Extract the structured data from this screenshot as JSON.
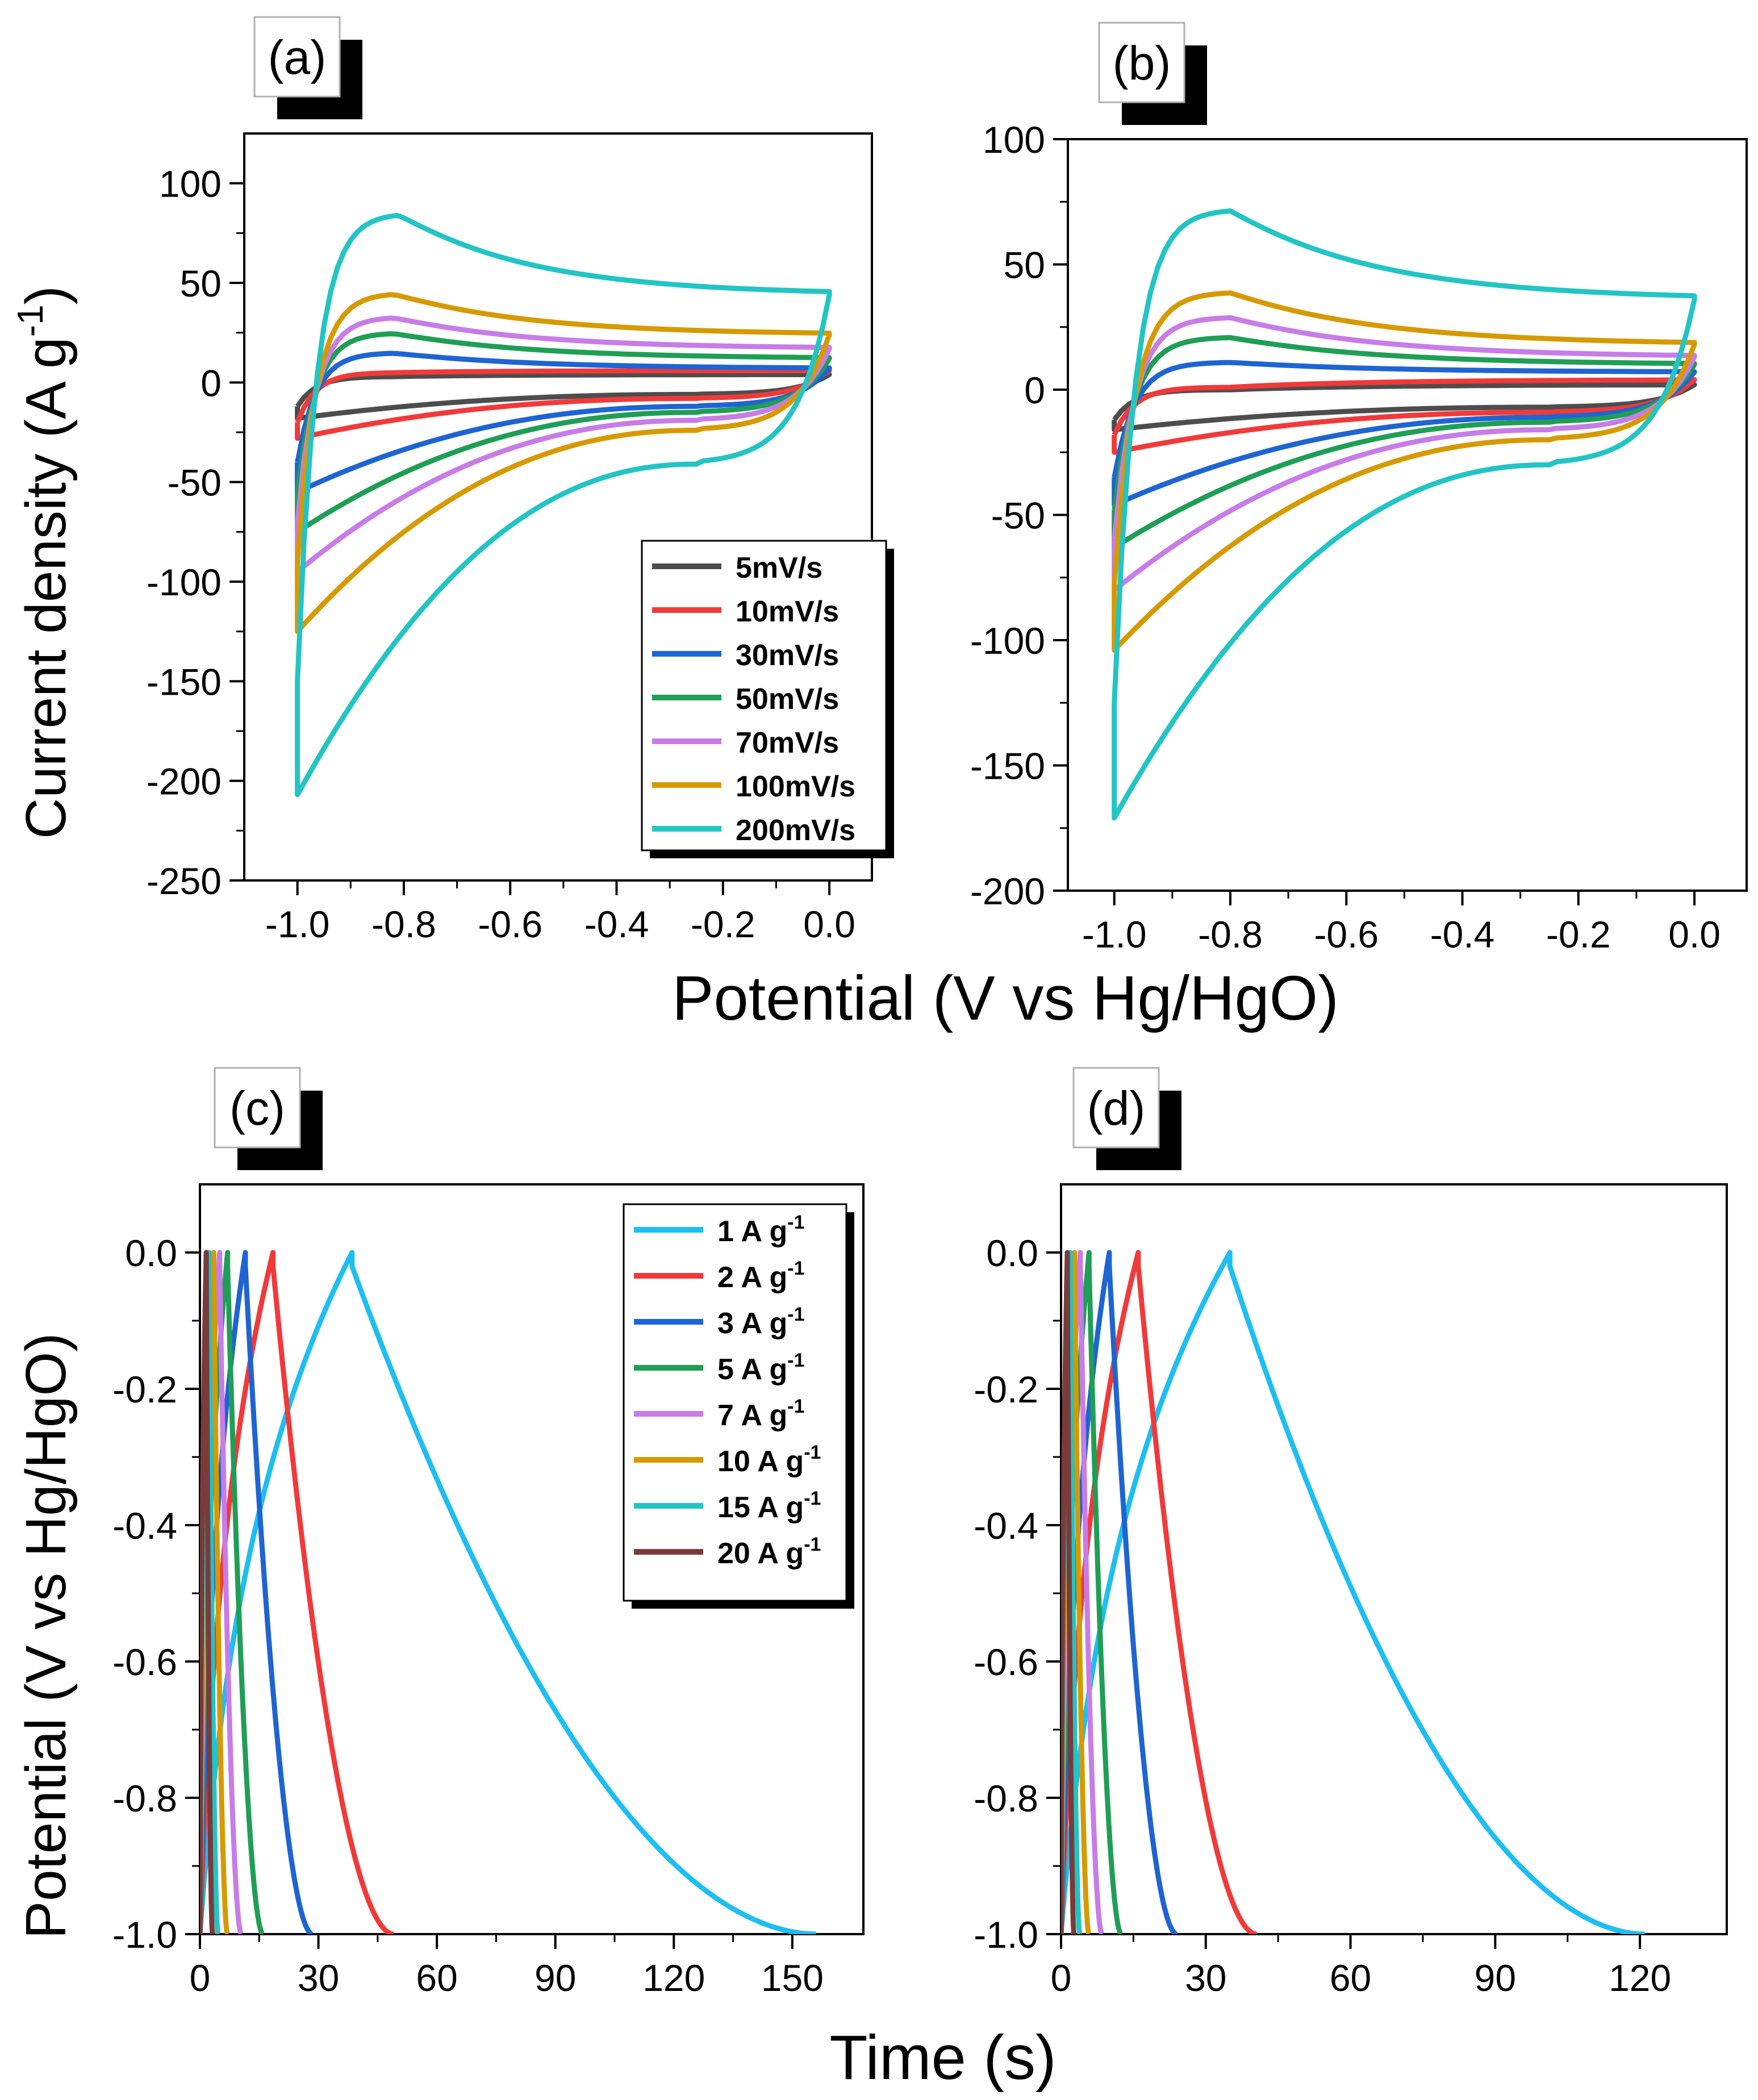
{
  "figure": {
    "shared_xlabel_top": "Potential (V vs Hg/HgO)",
    "shared_xlabel_bottom": "Time (s)",
    "ylabel_top": "Current density (A g",
    "ylabel_top_sup": "-1",
    "ylabel_top_close": ")",
    "ylabel_bottom": "Potential (V vs Hg/HgO)"
  },
  "chart_data": [
    {
      "panel": "a",
      "label": "(a)",
      "type": "line",
      "title": "",
      "xlabel": "Potential (V vs Hg/HgO)",
      "ylabel": "Current density (A g-1)",
      "xlim": [
        -1.1,
        0.08
      ],
      "ylim": [
        -250,
        125
      ],
      "xticks": [
        -1.0,
        -0.8,
        -0.6,
        -0.4,
        -0.2,
        0.0
      ],
      "xtick_labels": [
        "-1.0",
        "-0.8",
        "-0.6",
        "-0.4",
        "-0.2",
        "0.0"
      ],
      "yticks": [
        -250,
        -200,
        -150,
        -100,
        -50,
        0,
        50,
        100
      ],
      "ytick_labels": [
        "-250",
        "-200",
        "-150",
        "-100",
        "-50",
        "0",
        "50",
        "100"
      ],
      "legend": "lower-right",
      "series": [
        {
          "name": "5mV/s",
          "color": "#4d4d4d",
          "peak": 3,
          "peakPos": -0.82,
          "anodicEnd": 4,
          "cathodicMin": -18,
          "hump": -6,
          "startDrop": -12
        },
        {
          "name": "10mV/s",
          "color": "#f03a3a",
          "peak": 5,
          "peakPos": -0.82,
          "anodicEnd": 6,
          "cathodicMin": -28,
          "hump": -8,
          "startDrop": -20
        },
        {
          "name": "30mV/s",
          "color": "#1e64d2",
          "peak": 15,
          "peakPos": -0.82,
          "anodicEnd": 7,
          "cathodicMin": -55,
          "hump": -12,
          "startDrop": -40
        },
        {
          "name": "50mV/s",
          "color": "#1f9e55",
          "peak": 25,
          "peakPos": -0.82,
          "anodicEnd": 12,
          "cathodicMin": -75,
          "hump": -15,
          "startDrop": -55
        },
        {
          "name": "70mV/s",
          "color": "#c77ce8",
          "peak": 33,
          "peakPos": -0.82,
          "anodicEnd": 17,
          "cathodicMin": -95,
          "hump": -19,
          "startDrop": -70
        },
        {
          "name": "100mV/s",
          "color": "#d69a00",
          "peak": 45,
          "peakPos": -0.82,
          "anodicEnd": 24,
          "cathodicMin": -125,
          "hump": -24,
          "startDrop": -90
        },
        {
          "name": "200mV/s",
          "color": "#22c4c4",
          "peak": 85,
          "peakPos": -0.81,
          "anodicEnd": 44,
          "cathodicMin": -207,
          "hump": -41,
          "startDrop": -150
        }
      ]
    },
    {
      "panel": "b",
      "label": "(b)",
      "type": "line",
      "title": "",
      "xlabel": "Potential (V vs Hg/HgO)",
      "ylabel": "Current density (A g-1)",
      "xlim": [
        -1.08,
        0.09
      ],
      "ylim": [
        -200,
        100
      ],
      "xticks": [
        -1.0,
        -0.8,
        -0.6,
        -0.4,
        -0.2,
        0.0
      ],
      "xtick_labels": [
        "-1.0",
        "-0.8",
        "-0.6",
        "-0.4",
        "-0.2",
        "0.0"
      ],
      "yticks": [
        -200,
        -150,
        -100,
        -50,
        0,
        50,
        100
      ],
      "ytick_labels": [
        "-200",
        "-150",
        "-100",
        "-50",
        "0",
        "50",
        "100"
      ],
      "legend": "none",
      "series": [
        {
          "name": "5mV/s",
          "color": "#4d4d4d",
          "peak": 0,
          "peakPos": -0.8,
          "anodicEnd": 2,
          "cathodicMin": -16,
          "hump": -7,
          "startDrop": -12
        },
        {
          "name": "10mV/s",
          "color": "#f03a3a",
          "peak": 1,
          "peakPos": -0.8,
          "anodicEnd": 4,
          "cathodicMin": -25,
          "hump": -9,
          "startDrop": -18
        },
        {
          "name": "30mV/s",
          "color": "#1e64d2",
          "peak": 11,
          "peakPos": -0.8,
          "anodicEnd": 7,
          "cathodicMin": -46,
          "hump": -11,
          "startDrop": -35
        },
        {
          "name": "50mV/s",
          "color": "#1f9e55",
          "peak": 21,
          "peakPos": -0.8,
          "anodicEnd": 10,
          "cathodicMin": -63,
          "hump": -13,
          "startDrop": -48
        },
        {
          "name": "70mV/s",
          "color": "#c77ce8",
          "peak": 29,
          "peakPos": -0.8,
          "anodicEnd": 13,
          "cathodicMin": -80,
          "hump": -16,
          "startDrop": -60
        },
        {
          "name": "100mV/s",
          "color": "#d69a00",
          "peak": 39,
          "peakPos": -0.8,
          "anodicEnd": 18,
          "cathodicMin": -104,
          "hump": -20,
          "startDrop": -78
        },
        {
          "name": "200mV/s",
          "color": "#22c4c4",
          "peak": 72,
          "peakPos": -0.8,
          "anodicEnd": 36,
          "cathodicMin": -171,
          "hump": -30,
          "startDrop": -125
        }
      ]
    },
    {
      "panel": "c",
      "label": "(c)",
      "type": "line",
      "title": "",
      "xlabel": "Time (s)",
      "ylabel": "Potential (V vs Hg/HgO)",
      "xlim": [
        0,
        168
      ],
      "ylim": [
        -1.0,
        0.1
      ],
      "xticks": [
        0,
        30,
        60,
        90,
        120,
        150
      ],
      "xtick_labels": [
        "0",
        "30",
        "60",
        "90",
        "120",
        "150"
      ],
      "yticks": [
        -1.0,
        -0.8,
        -0.6,
        -0.4,
        -0.2,
        0.0
      ],
      "ytick_labels": [
        "-1.0",
        "-0.8",
        "-0.6",
        "-0.4",
        "-0.2",
        "0.0"
      ],
      "legend": "top-right",
      "series": [
        {
          "name": "1 A g",
          "sup": "-1",
          "color": "#1ebef0",
          "tc": 38.5,
          "te": 156
        },
        {
          "name": "2 A g",
          "sup": "-1",
          "color": "#f03a3a",
          "tc": 18.5,
          "te": 49
        },
        {
          "name": "3 A g",
          "sup": "-1",
          "color": "#1e64d2",
          "tc": 11.5,
          "te": 28.5
        },
        {
          "name": "5 A g",
          "sup": "-1",
          "color": "#1f9e55",
          "tc": 7,
          "te": 16
        },
        {
          "name": "7 A g",
          "sup": "-1",
          "color": "#c77ce8",
          "tc": 5,
          "te": 10.5
        },
        {
          "name": "10 A g",
          "sup": "-1",
          "color": "#d69a00",
          "tc": 3.5,
          "te": 7
        },
        {
          "name": "15 A g",
          "sup": "-1",
          "color": "#22c4c4",
          "tc": 2.3,
          "te": 4.6
        },
        {
          "name": "20 A g",
          "sup": "-1",
          "color": "#7a3b3b",
          "tc": 1.6,
          "te": 3.2
        }
      ]
    },
    {
      "panel": "d",
      "label": "(d)",
      "type": "line",
      "title": "",
      "xlabel": "Time (s)",
      "ylabel": "Potential (V vs Hg/HgO)",
      "xlim": [
        0,
        138
      ],
      "ylim": [
        -1.0,
        0.1
      ],
      "xticks": [
        0,
        30,
        60,
        90,
        120
      ],
      "xtick_labels": [
        "0",
        "30",
        "60",
        "90",
        "120"
      ],
      "yticks": [
        -1.0,
        -0.8,
        -0.6,
        -0.4,
        -0.2,
        0.0
      ],
      "ytick_labels": [
        "-1.0",
        "-0.8",
        "-0.6",
        "-0.4",
        "-0.2",
        "0.0"
      ],
      "legend": "none",
      "series": [
        {
          "name": "1 A g",
          "sup": "-1",
          "color": "#1ebef0",
          "tc": 35,
          "te": 121
        },
        {
          "name": "2 A g",
          "sup": "-1",
          "color": "#f03a3a",
          "tc": 16,
          "te": 40.5
        },
        {
          "name": "3 A g",
          "sup": "-1",
          "color": "#1e64d2",
          "tc": 10,
          "te": 24
        },
        {
          "name": "5 A g",
          "sup": "-1",
          "color": "#1f9e55",
          "tc": 5.8,
          "te": 12.5
        },
        {
          "name": "7 A g",
          "sup": "-1",
          "color": "#c77ce8",
          "tc": 4,
          "te": 8.5
        },
        {
          "name": "10 A g",
          "sup": "-1",
          "color": "#d69a00",
          "tc": 2.8,
          "te": 5.8
        },
        {
          "name": "15 A g",
          "sup": "-1",
          "color": "#22c4c4",
          "tc": 1.9,
          "te": 3.9
        },
        {
          "name": "20 A g",
          "sup": "-1",
          "color": "#7a3b3b",
          "tc": 1.3,
          "te": 2.7
        }
      ]
    }
  ]
}
